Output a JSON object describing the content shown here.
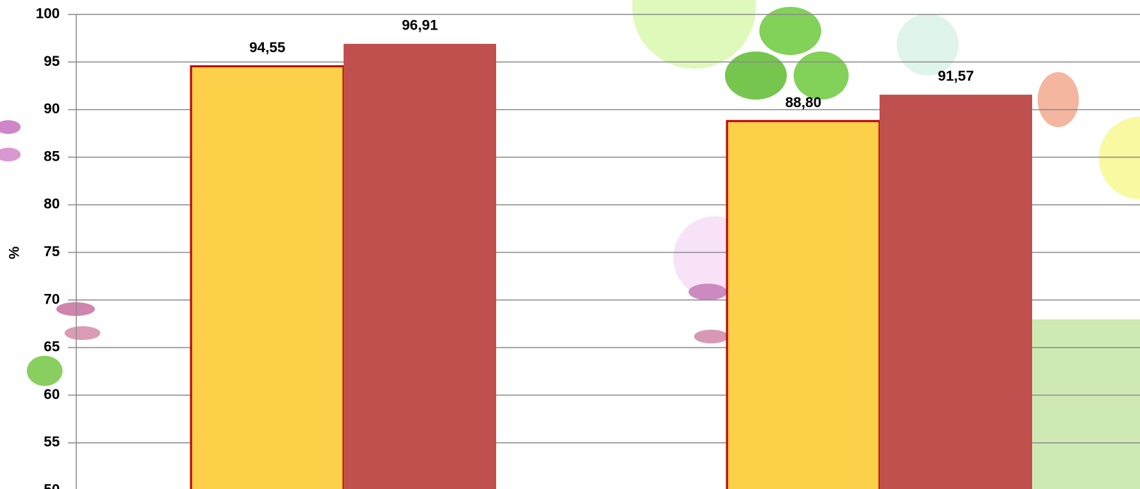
{
  "chart_data": {
    "type": "bar",
    "y_label": "%",
    "categories": [
      null,
      null
    ],
    "series": [
      {
        "color": "#fdd04a",
        "edgecolor": "#c00000",
        "values": [
          94.55,
          88.8
        ],
        "value_labels": [
          "94,55",
          "88,80"
        ]
      },
      {
        "color": "#c0504d",
        "values": [
          96.91,
          91.57
        ],
        "value_labels": [
          "96,91",
          "91,57"
        ]
      }
    ],
    "ylim": [
      50,
      100
    ],
    "yticks": [
      50,
      55,
      60,
      65,
      70,
      75,
      80,
      85,
      90,
      95,
      100
    ],
    "grid": true
  }
}
